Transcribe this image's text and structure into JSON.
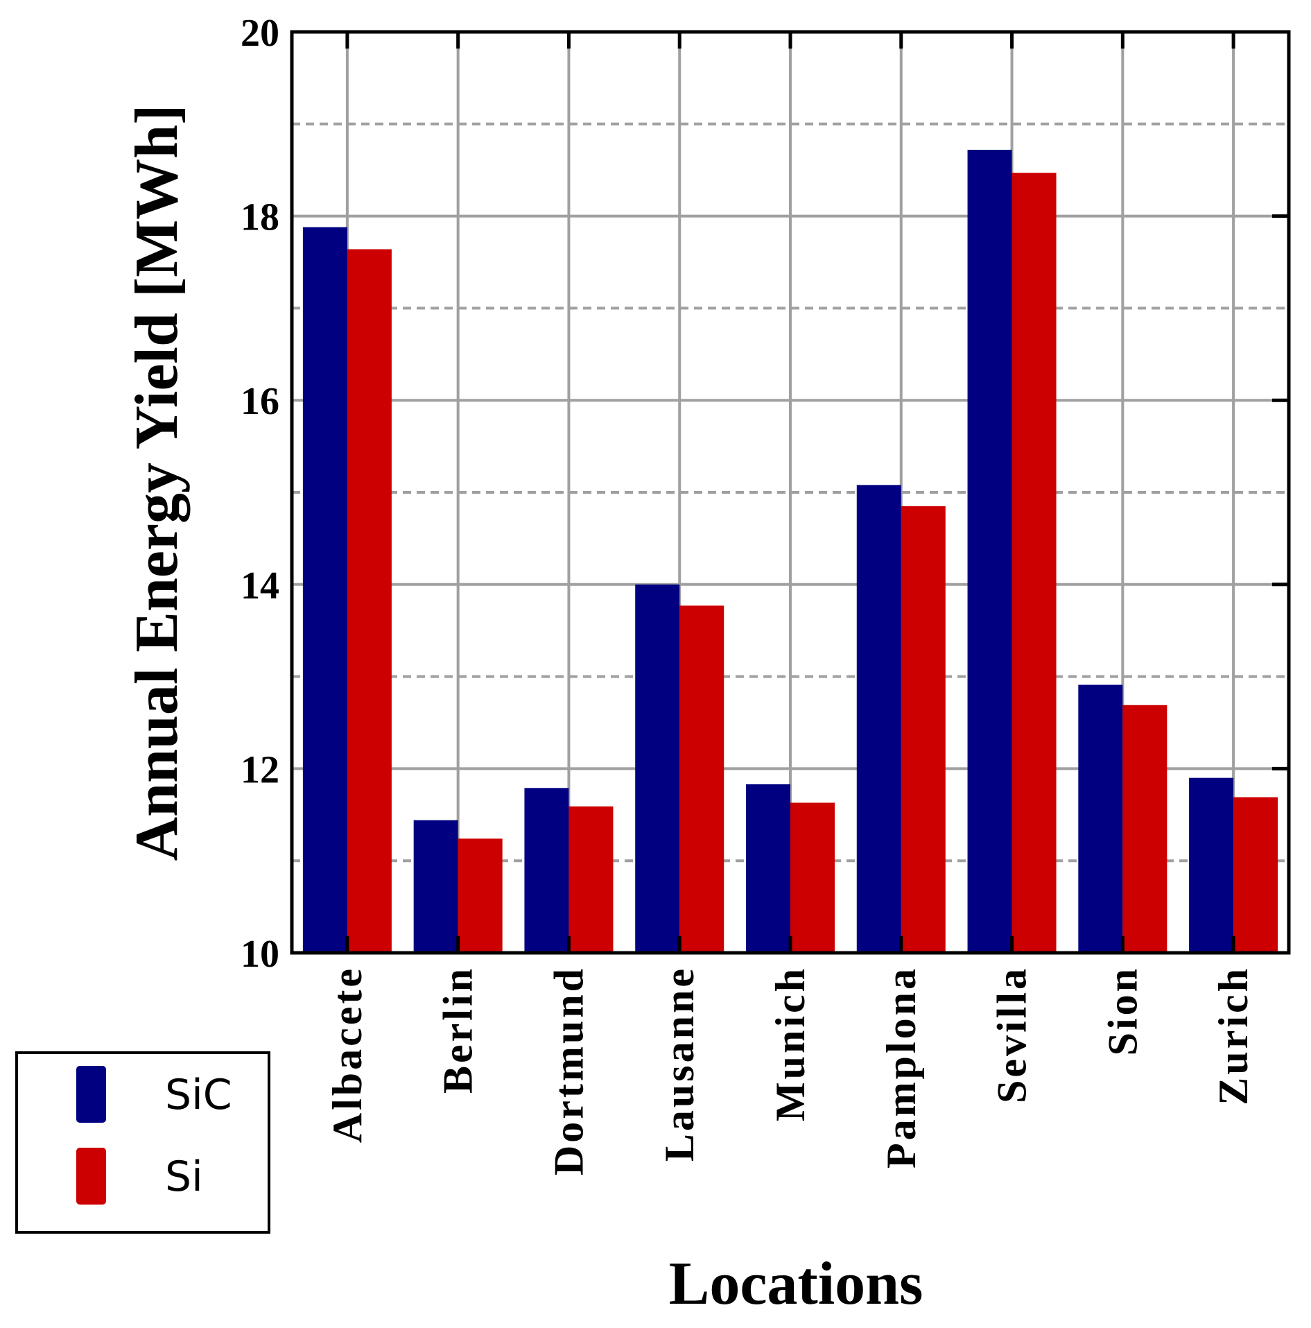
{
  "chart_data": {
    "type": "bar",
    "y_label": "Annual Energy Yield [MWh]",
    "x_label": "Locations",
    "categories": [
      "Albacete",
      "Berlin",
      "Dortmund",
      "Lausanne",
      "Munich",
      "Pamplona",
      "Sevilla",
      "Sion",
      "Zurich"
    ],
    "series": [
      {
        "name": "SiC",
        "color": "#000080",
        "values": [
          17.88,
          11.44,
          11.79,
          14.0,
          11.83,
          15.08,
          18.72,
          12.91,
          11.9
        ]
      },
      {
        "name": "Si",
        "color": "#cc0000",
        "values": [
          17.64,
          11.24,
          11.59,
          13.77,
          11.63,
          14.85,
          18.47,
          12.69,
          11.69
        ]
      }
    ],
    "ylim": [
      10,
      20
    ],
    "yticks": [
      10,
      12,
      14,
      16,
      18,
      20
    ],
    "minor_grid_yticks": [
      11,
      13,
      15,
      17,
      19
    ],
    "grid": true,
    "legend": "bottom-left"
  }
}
